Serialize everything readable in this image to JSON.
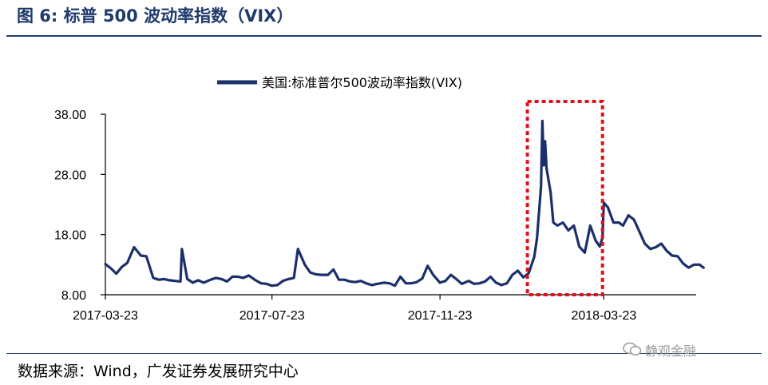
{
  "header": {
    "title": "图 6:  标普 500 波动率指数（VIX）"
  },
  "footer": {
    "source": "数据来源：Wind，广发证券发展研究中心",
    "watermark": "静观金融"
  },
  "colors": {
    "series": "#1b2f6b",
    "highlight_box": "#e0101a",
    "axis": "#000000",
    "title": "#1f3a6d"
  },
  "chart_data": {
    "type": "line",
    "title": "",
    "xlabel": "",
    "ylabel": "",
    "ylim": [
      8,
      38
    ],
    "yticks": [
      "38.00",
      "28.00",
      "18.00",
      "8.00"
    ],
    "xticks": [
      "2017-03-23",
      "2017-07-23",
      "2017-11-23",
      "2018-03-23"
    ],
    "grid": false,
    "legend": "top-center",
    "highlight": {
      "x_from": "2018-01-26",
      "x_to": "2018-03-22"
    },
    "series": [
      {
        "name": "美国:标准普尔500波动率指数(VIX)",
        "x": [
          "2017-03-23",
          "2017-03-27",
          "2017-03-31",
          "2017-04-04",
          "2017-04-08",
          "2017-04-13",
          "2017-04-18",
          "2017-04-22",
          "2017-04-27",
          "2017-05-01",
          "2017-05-05",
          "2017-05-09",
          "2017-05-13",
          "2017-05-17",
          "2017-05-18",
          "2017-05-22",
          "2017-05-26",
          "2017-05-30",
          "2017-06-03",
          "2017-06-08",
          "2017-06-12",
          "2017-06-16",
          "2017-06-20",
          "2017-06-24",
          "2017-06-28",
          "2017-07-02",
          "2017-07-06",
          "2017-07-11",
          "2017-07-15",
          "2017-07-19",
          "2017-07-23",
          "2017-07-27",
          "2017-07-31",
          "2017-08-04",
          "2017-08-08",
          "2017-08-11",
          "2017-08-16",
          "2017-08-20",
          "2017-08-24",
          "2017-08-28",
          "2017-09-02",
          "2017-09-06",
          "2017-09-10",
          "2017-09-14",
          "2017-09-18",
          "2017-09-22",
          "2017-09-26",
          "2017-09-30",
          "2017-10-04",
          "2017-10-08",
          "2017-10-13",
          "2017-10-17",
          "2017-10-21",
          "2017-10-25",
          "2017-10-29",
          "2017-11-02",
          "2017-11-06",
          "2017-11-10",
          "2017-11-14",
          "2017-11-18",
          "2017-11-23",
          "2017-11-27",
          "2017-12-01",
          "2017-12-05",
          "2017-12-09",
          "2017-12-14",
          "2017-12-18",
          "2017-12-22",
          "2017-12-26",
          "2017-12-30",
          "2018-01-03",
          "2018-01-07",
          "2018-01-11",
          "2018-01-15",
          "2018-01-19",
          "2018-01-23",
          "2018-01-27",
          "2018-01-31",
          "2018-02-02",
          "2018-02-05",
          "2018-02-06",
          "2018-02-07",
          "2018-02-08",
          "2018-02-09",
          "2018-02-12",
          "2018-02-14",
          "2018-02-17",
          "2018-02-21",
          "2018-02-25",
          "2018-03-01",
          "2018-03-05",
          "2018-03-09",
          "2018-03-13",
          "2018-03-17",
          "2018-03-20",
          "2018-03-22",
          "2018-03-23",
          "2018-03-26",
          "2018-03-30",
          "2018-04-03",
          "2018-04-06",
          "2018-04-10",
          "2018-04-14",
          "2018-04-18",
          "2018-04-22",
          "2018-04-26",
          "2018-04-30",
          "2018-05-04",
          "2018-05-08",
          "2018-05-12",
          "2018-05-16",
          "2018-05-20",
          "2018-05-24",
          "2018-05-28",
          "2018-06-01",
          "2018-06-04"
        ],
        "values": [
          13.1,
          12.4,
          11.5,
          12.6,
          13.3,
          15.9,
          14.5,
          14.4,
          10.8,
          10.5,
          10.6,
          10.4,
          10.3,
          10.2,
          15.6,
          10.6,
          10.0,
          10.4,
          10.0,
          10.5,
          10.8,
          10.6,
          10.2,
          11.0,
          11.0,
          10.8,
          11.2,
          10.4,
          9.9,
          9.8,
          9.5,
          9.6,
          10.3,
          10.6,
          10.8,
          15.6,
          13.0,
          11.7,
          11.4,
          11.3,
          11.3,
          12.2,
          10.5,
          10.5,
          10.2,
          10.1,
          10.3,
          9.9,
          9.6,
          9.8,
          10.0,
          9.9,
          9.5,
          11.0,
          9.9,
          9.9,
          10.1,
          10.7,
          12.8,
          11.3,
          10.0,
          10.3,
          11.3,
          10.6,
          9.8,
          10.3,
          9.8,
          9.9,
          10.2,
          11.0,
          10.0,
          9.6,
          9.9,
          11.3,
          12.0,
          10.9,
          11.6,
          14.3,
          17.3,
          26.0,
          36.9,
          29.5,
          33.5,
          29.0,
          25.0,
          20.0,
          19.5,
          20.0,
          18.7,
          19.5,
          16.0,
          15.0,
          19.5,
          17.0,
          16.0,
          17.5,
          23.3,
          22.5,
          20.0,
          20.0,
          19.5,
          21.2,
          20.5,
          18.5,
          16.5,
          15.6,
          15.9,
          16.5,
          15.3,
          14.5,
          14.4,
          13.2,
          12.5,
          13.0,
          13.0,
          12.5
        ]
      }
    ]
  }
}
